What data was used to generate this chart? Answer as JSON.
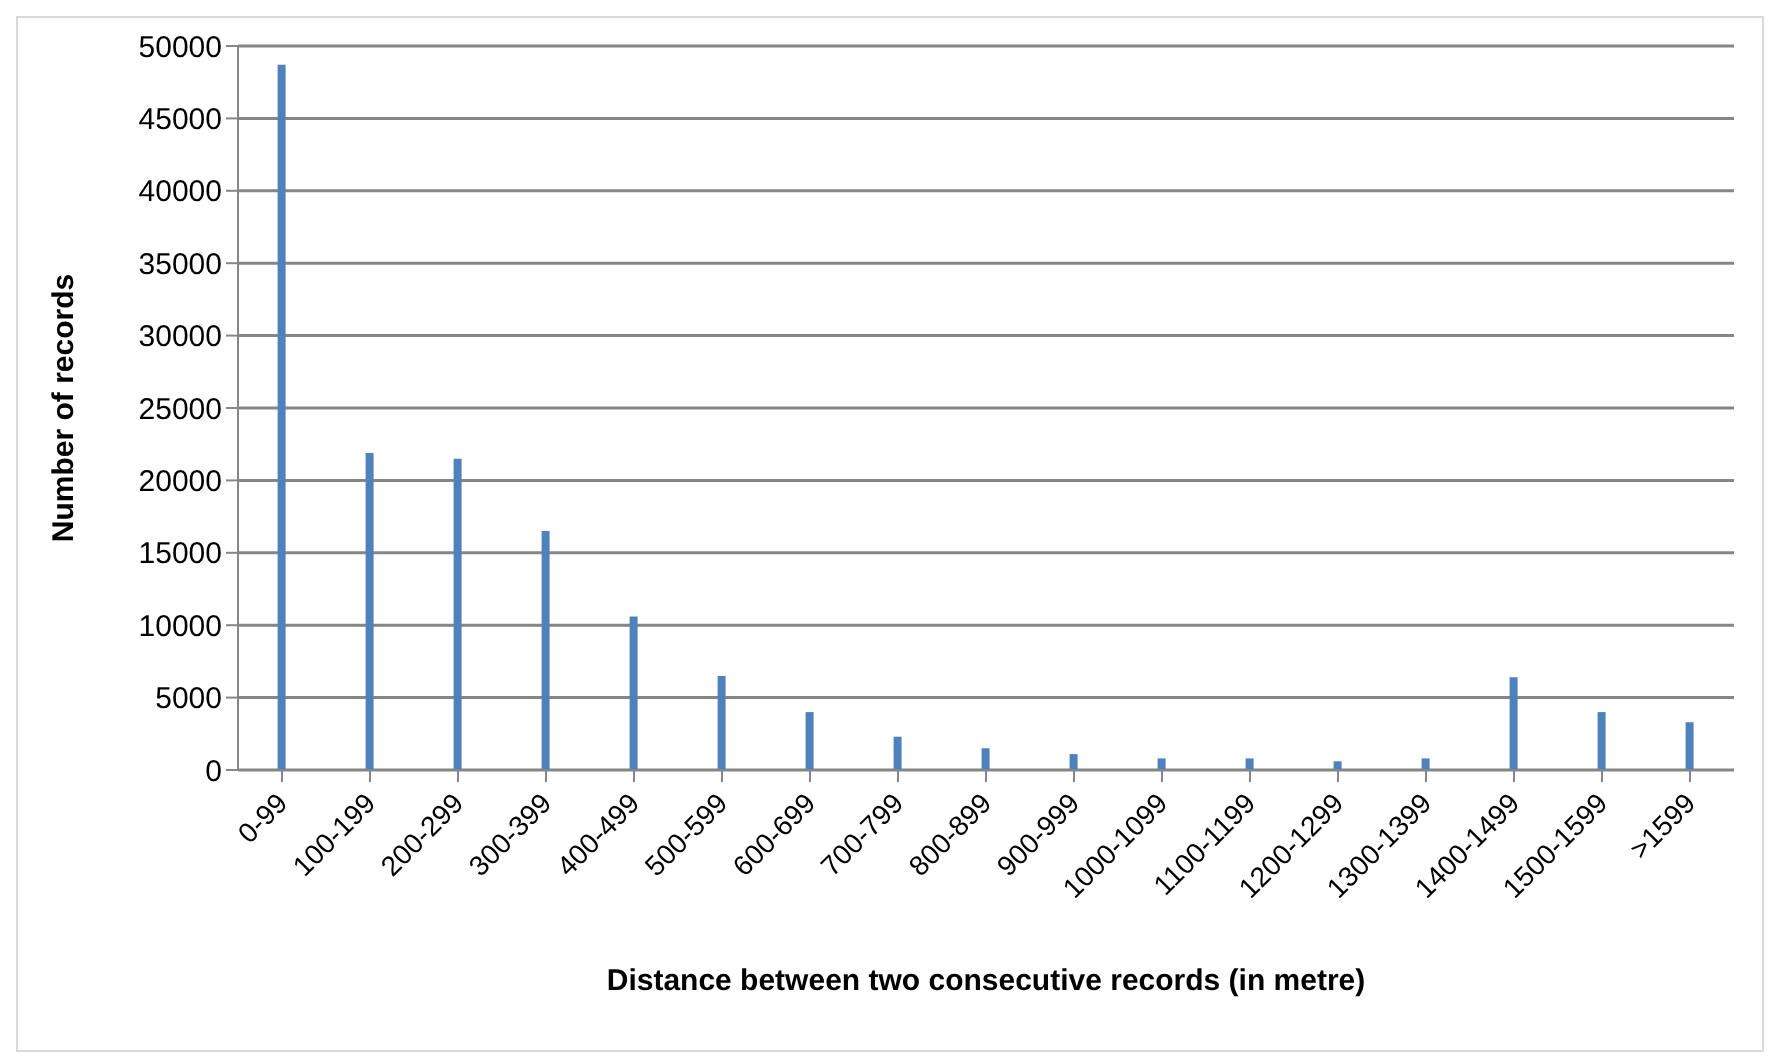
{
  "chart_data": {
    "type": "bar",
    "xlabel": "Distance between two consecutive records (in metre)",
    "ylabel": "Number of records",
    "categories": [
      "0-99",
      "100-199",
      "200-299",
      "300-399",
      "400-499",
      "500-599",
      "600-699",
      "700-799",
      "800-899",
      "900-999",
      "1000-1099",
      "1100-1199",
      "1200-1299",
      "1300-1399",
      "1400-1499",
      "1500-1599",
      ">1599"
    ],
    "values": [
      48700,
      21900,
      21500,
      16500,
      10600,
      6500,
      4000,
      2300,
      1500,
      1100,
      800,
      800,
      600,
      800,
      6400,
      4000,
      3300
    ],
    "color": "#4f81bd",
    "ylim": [
      0,
      50000
    ],
    "yticks": [
      0,
      5000,
      10000,
      15000,
      20000,
      25000,
      30000,
      35000,
      40000,
      45000,
      50000
    ],
    "grid": "y",
    "legend": false
  }
}
